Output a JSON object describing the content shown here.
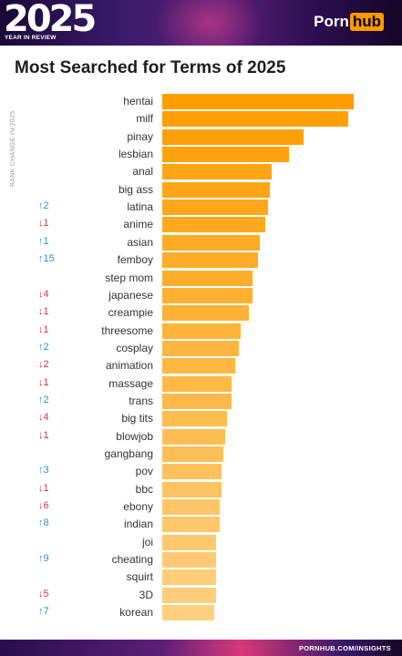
{
  "header": {
    "year": "2025",
    "subtitle": "YEAR IN REVIEW",
    "logo_left": "Porn",
    "logo_right": "hub"
  },
  "title": "Most Searched for Terms of 2025",
  "side_label": "RANK CHANGE IN 2025",
  "footer": {
    "text": "PORNHUB.COM/INSIGHTS"
  },
  "colors": {
    "bar_top": "#ff9d00",
    "bar_bottom": "#ffcf80",
    "rank_up": "#2a8fd6",
    "rank_down": "#d6304f",
    "accent": "#ff9900"
  },
  "chart_data": {
    "type": "bar",
    "orientation": "horizontal",
    "title": "Most Searched for Terms of 2025",
    "xlabel": "",
    "ylabel": "",
    "categories": [
      "hentai",
      "milf",
      "pinay",
      "lesbian",
      "anal",
      "big ass",
      "latina",
      "anime",
      "asian",
      "femboy",
      "step mom",
      "japanese",
      "creampie",
      "threesome",
      "cosplay",
      "animation",
      "massage",
      "trans",
      "big tits",
      "blowjob",
      "gangbang",
      "pov",
      "bbc",
      "ebony",
      "indian",
      "joi",
      "cheating",
      "squirt",
      "3D",
      "korean"
    ],
    "values": [
      100,
      97,
      74,
      66,
      57,
      56,
      55,
      54,
      51,
      50,
      47,
      47,
      45,
      41,
      40,
      38,
      36,
      36,
      34,
      33,
      32,
      31,
      31,
      30,
      30,
      28,
      28,
      28,
      28,
      27
    ],
    "rank_change": [
      "",
      "",
      "",
      "",
      "",
      "",
      "↑2",
      "↓1",
      "↑1",
      "↑15",
      "",
      "↓4",
      "↓1",
      "↓1",
      "↑2",
      "↓2",
      "↓1",
      "↑2",
      "↓4",
      "↓1",
      "",
      "↑3",
      "↓1",
      "↓6",
      "↑8",
      "",
      "↑9",
      "",
      "↓5",
      "↑7"
    ],
    "xlim": [
      0,
      100
    ]
  }
}
